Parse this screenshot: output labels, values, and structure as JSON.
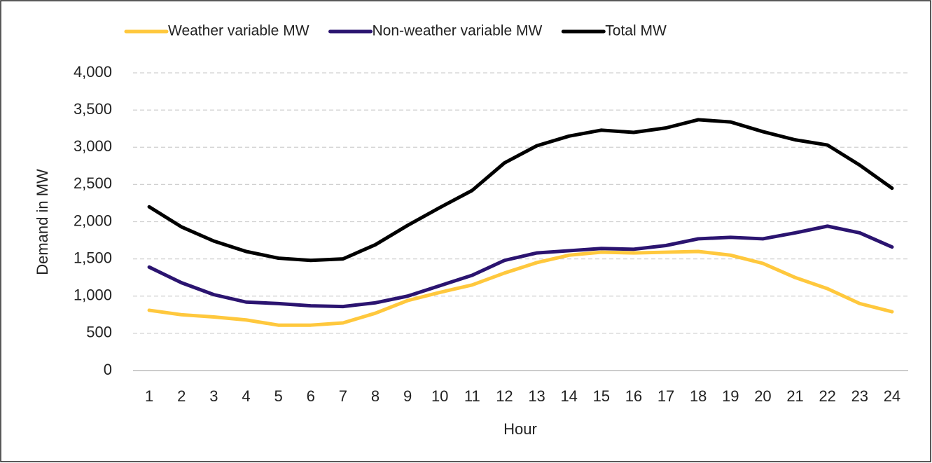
{
  "chart_data": {
    "type": "line",
    "x_label": "Hour",
    "y_label": "Demand in MW",
    "categories": [
      1,
      2,
      3,
      4,
      5,
      6,
      7,
      8,
      9,
      10,
      11,
      12,
      13,
      14,
      15,
      16,
      17,
      18,
      19,
      20,
      21,
      22,
      23,
      24
    ],
    "series": [
      {
        "name": "Weather variable MW",
        "color": "#FFC83D",
        "values": [
          810,
          750,
          720,
          680,
          610,
          610,
          640,
          770,
          940,
          1050,
          1150,
          1310,
          1450,
          1550,
          1590,
          1580,
          1590,
          1600,
          1550,
          1440,
          1250,
          1100,
          900,
          790
        ]
      },
      {
        "name": "Non-weather variable MW",
        "color": "#2B1470",
        "values": [
          1390,
          1180,
          1020,
          920,
          900,
          870,
          860,
          910,
          1000,
          1140,
          1280,
          1480,
          1580,
          1610,
          1640,
          1630,
          1680,
          1770,
          1790,
          1770,
          1850,
          1940,
          1850,
          1660
        ]
      },
      {
        "name": "Total MW",
        "color": "#000000",
        "values": [
          2200,
          1930,
          1740,
          1600,
          1510,
          1480,
          1500,
          1690,
          1950,
          2190,
          2420,
          2790,
          3020,
          3150,
          3230,
          3200,
          3260,
          3370,
          3340,
          3210,
          3100,
          3030,
          2760,
          2450
        ]
      }
    ],
    "ylim": [
      0,
      4000
    ],
    "yticks": [
      0,
      500,
      {
        "value": 1000,
        "label": "1,000"
      },
      {
        "value": 1500,
        "label": "1,500"
      },
      {
        "value": 2000,
        "label": "2,000"
      },
      {
        "value": 2500,
        "label": "2,500"
      },
      {
        "value": 3000,
        "label": "3,000"
      },
      {
        "value": 3500,
        "label": "3,500"
      },
      {
        "value": 4000,
        "label": "4,000"
      }
    ],
    "grid": true,
    "legend": "top"
  }
}
